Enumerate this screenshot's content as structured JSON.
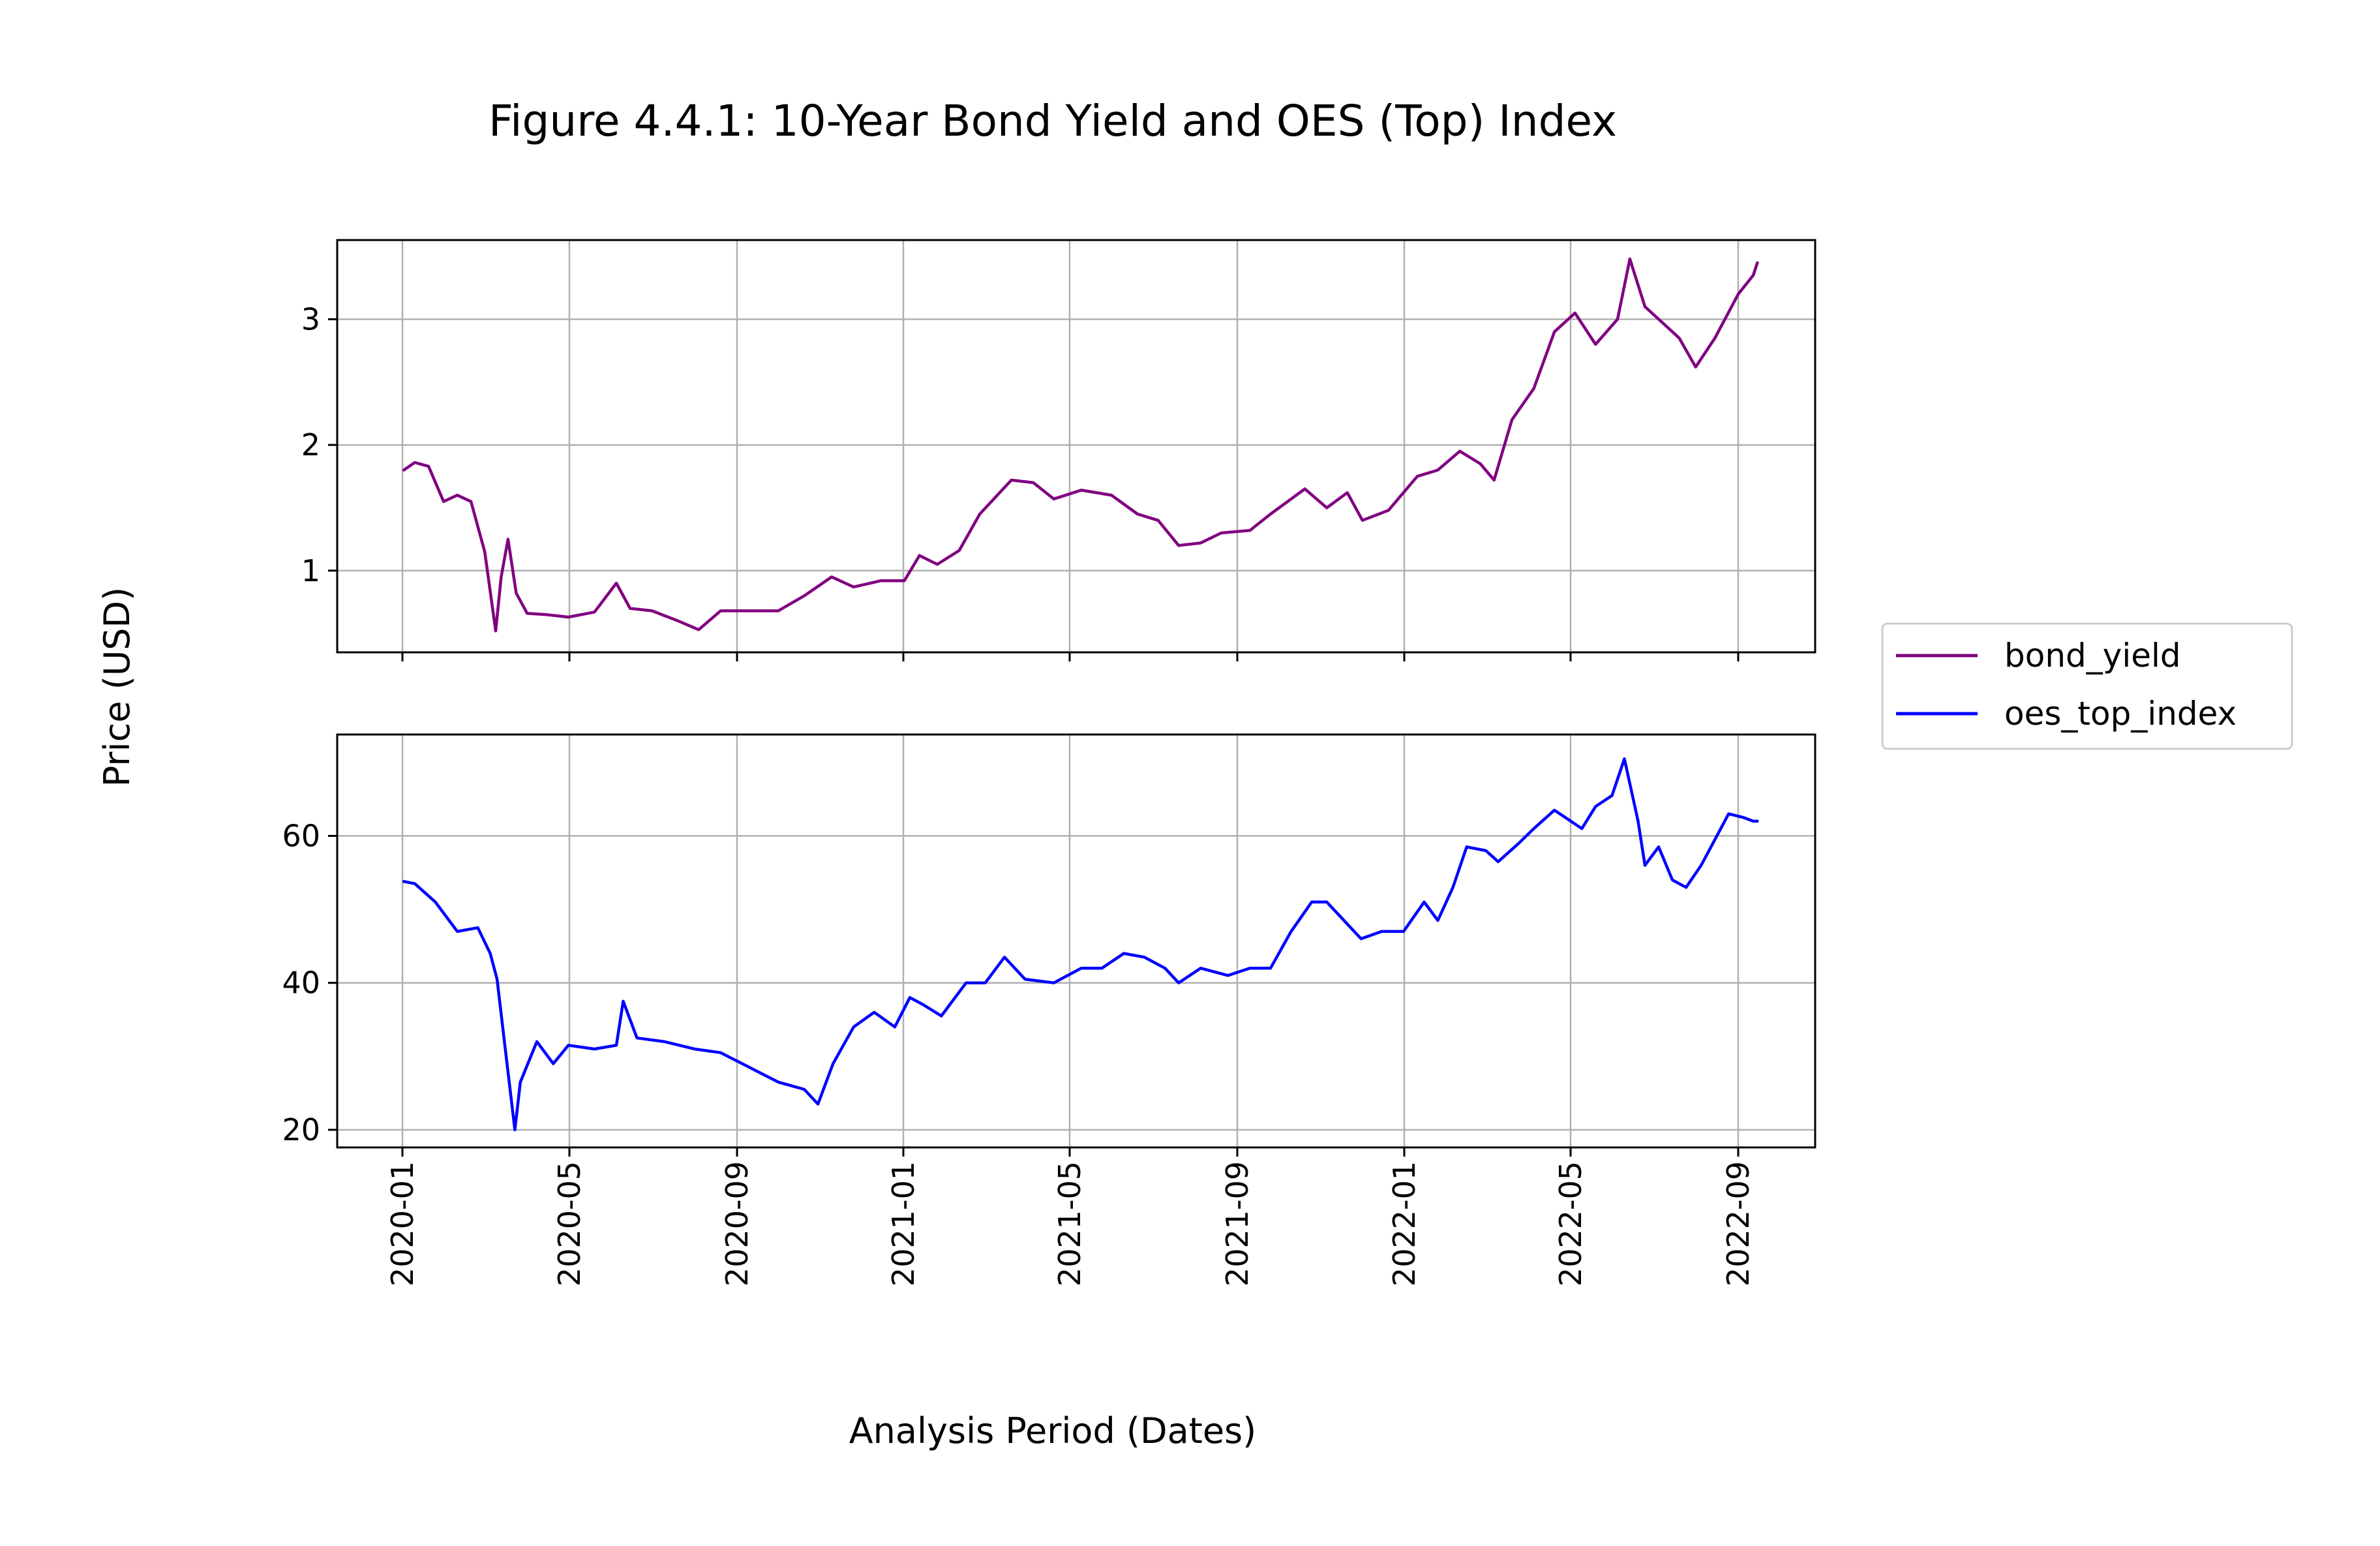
{
  "chart_data": {
    "type": "line",
    "title": "Figure 4.4.1: 10-Year Bond Yield and OES (Top) Index",
    "xlabel": "Analysis Period (Dates)",
    "ylabel": "Price (USD)",
    "x_tick_labels": [
      "2020-01",
      "2020-05",
      "2020-09",
      "2021-01",
      "2021-05",
      "2021-09",
      "2022-01",
      "2022-05",
      "2022-09"
    ],
    "grid": true,
    "legend_position": "right",
    "legend": [
      {
        "name": "bond_yield",
        "color": "#800080"
      },
      {
        "name": "oes_top_index",
        "color": "#0000ff"
      }
    ],
    "panels": [
      {
        "series": "bond_yield",
        "color": "#800080",
        "ylim": [
          0.35,
          3.63
        ],
        "y_ticks": [
          1,
          2,
          3
        ],
        "points": [
          [
            "2020-01-02",
            1.8
          ],
          [
            "2020-01-10",
            1.86
          ],
          [
            "2020-01-20",
            1.83
          ],
          [
            "2020-01-31",
            1.55
          ],
          [
            "2020-02-10",
            1.6
          ],
          [
            "2020-02-20",
            1.55
          ],
          [
            "2020-03-01",
            1.15
          ],
          [
            "2020-03-09",
            0.52
          ],
          [
            "2020-03-13",
            0.95
          ],
          [
            "2020-03-18",
            1.25
          ],
          [
            "2020-03-24",
            0.82
          ],
          [
            "2020-04-01",
            0.66
          ],
          [
            "2020-04-15",
            0.65
          ],
          [
            "2020-05-01",
            0.63
          ],
          [
            "2020-05-20",
            0.67
          ],
          [
            "2020-06-05",
            0.9
          ],
          [
            "2020-06-15",
            0.7
          ],
          [
            "2020-07-01",
            0.68
          ],
          [
            "2020-07-20",
            0.6
          ],
          [
            "2020-08-04",
            0.53
          ],
          [
            "2020-08-20",
            0.68
          ],
          [
            "2020-09-10",
            0.68
          ],
          [
            "2020-10-01",
            0.68
          ],
          [
            "2020-10-20",
            0.8
          ],
          [
            "2020-11-09",
            0.95
          ],
          [
            "2020-11-25",
            0.87
          ],
          [
            "2020-12-15",
            0.92
          ],
          [
            "2021-01-01",
            0.92
          ],
          [
            "2021-01-12",
            1.12
          ],
          [
            "2021-01-25",
            1.05
          ],
          [
            "2021-02-10",
            1.16
          ],
          [
            "2021-02-25",
            1.45
          ],
          [
            "2021-03-20",
            1.72
          ],
          [
            "2021-04-05",
            1.7
          ],
          [
            "2021-04-20",
            1.57
          ],
          [
            "2021-05-10",
            1.64
          ],
          [
            "2021-06-01",
            1.6
          ],
          [
            "2021-06-20",
            1.45
          ],
          [
            "2021-07-05",
            1.4
          ],
          [
            "2021-07-20",
            1.2
          ],
          [
            "2021-08-05",
            1.22
          ],
          [
            "2021-08-20",
            1.3
          ],
          [
            "2021-09-10",
            1.32
          ],
          [
            "2021-09-25",
            1.45
          ],
          [
            "2021-10-20",
            1.65
          ],
          [
            "2021-11-05",
            1.5
          ],
          [
            "2021-11-20",
            1.62
          ],
          [
            "2021-12-01",
            1.4
          ],
          [
            "2021-12-20",
            1.48
          ],
          [
            "2022-01-10",
            1.75
          ],
          [
            "2022-01-25",
            1.8
          ],
          [
            "2022-02-10",
            1.95
          ],
          [
            "2022-02-25",
            1.85
          ],
          [
            "2022-03-07",
            1.72
          ],
          [
            "2022-03-20",
            2.2
          ],
          [
            "2022-04-05",
            2.45
          ],
          [
            "2022-04-20",
            2.9
          ],
          [
            "2022-05-05",
            3.05
          ],
          [
            "2022-05-20",
            2.8
          ],
          [
            "2022-06-05",
            3.0
          ],
          [
            "2022-06-14",
            3.48
          ],
          [
            "2022-06-25",
            3.1
          ],
          [
            "2022-07-10",
            2.95
          ],
          [
            "2022-07-20",
            2.85
          ],
          [
            "2022-08-01",
            2.62
          ],
          [
            "2022-08-15",
            2.85
          ],
          [
            "2022-09-01",
            3.2
          ],
          [
            "2022-09-12",
            3.35
          ],
          [
            "2022-09-15",
            3.45
          ]
        ]
      },
      {
        "series": "oes_top_index",
        "color": "#0000ff",
        "ylim": [
          17.6,
          73.8
        ],
        "y_ticks": [
          20,
          40,
          60
        ],
        "points": [
          [
            "2020-01-02",
            53.8
          ],
          [
            "2020-01-10",
            53.5
          ],
          [
            "2020-01-25",
            51.0
          ],
          [
            "2020-02-10",
            47.0
          ],
          [
            "2020-02-25",
            47.5
          ],
          [
            "2020-03-05",
            44.0
          ],
          [
            "2020-03-10",
            40.5
          ],
          [
            "2020-03-16",
            31.0
          ],
          [
            "2020-03-23",
            20.0
          ],
          [
            "2020-03-27",
            26.5
          ],
          [
            "2020-04-08",
            32.0
          ],
          [
            "2020-04-20",
            29.0
          ],
          [
            "2020-05-01",
            31.5
          ],
          [
            "2020-05-20",
            31.0
          ],
          [
            "2020-06-05",
            31.5
          ],
          [
            "2020-06-10",
            37.5
          ],
          [
            "2020-06-20",
            32.5
          ],
          [
            "2020-07-10",
            32.0
          ],
          [
            "2020-08-01",
            31.0
          ],
          [
            "2020-08-20",
            30.5
          ],
          [
            "2020-09-10",
            28.5
          ],
          [
            "2020-10-01",
            26.5
          ],
          [
            "2020-10-20",
            25.5
          ],
          [
            "2020-10-30",
            23.5
          ],
          [
            "2020-11-10",
            29.0
          ],
          [
            "2020-11-25",
            34.0
          ],
          [
            "2020-12-10",
            36.0
          ],
          [
            "2020-12-25",
            34.0
          ],
          [
            "2021-01-05",
            38.0
          ],
          [
            "2021-01-15",
            37.0
          ],
          [
            "2021-01-28",
            35.5
          ],
          [
            "2021-02-15",
            40.0
          ],
          [
            "2021-03-01",
            40.0
          ],
          [
            "2021-03-15",
            43.5
          ],
          [
            "2021-03-30",
            40.5
          ],
          [
            "2021-04-20",
            40.0
          ],
          [
            "2021-05-10",
            42.0
          ],
          [
            "2021-05-25",
            42.0
          ],
          [
            "2021-06-10",
            44.0
          ],
          [
            "2021-06-25",
            43.5
          ],
          [
            "2021-07-10",
            42.0
          ],
          [
            "2021-07-20",
            40.0
          ],
          [
            "2021-08-05",
            42.0
          ],
          [
            "2021-08-25",
            41.0
          ],
          [
            "2021-09-10",
            42.0
          ],
          [
            "2021-09-25",
            42.0
          ],
          [
            "2021-10-10",
            47.0
          ],
          [
            "2021-10-25",
            51.0
          ],
          [
            "2021-11-05",
            51.0
          ],
          [
            "2021-11-15",
            49.0
          ],
          [
            "2021-11-30",
            46.0
          ],
          [
            "2021-12-15",
            47.0
          ],
          [
            "2021-12-31",
            47.0
          ],
          [
            "2022-01-15",
            51.0
          ],
          [
            "2022-01-25",
            48.5
          ],
          [
            "2022-02-05",
            53.0
          ],
          [
            "2022-02-15",
            58.5
          ],
          [
            "2022-03-01",
            58.0
          ],
          [
            "2022-03-10",
            56.5
          ],
          [
            "2022-03-25",
            59.0
          ],
          [
            "2022-04-05",
            61.0
          ],
          [
            "2022-04-20",
            63.5
          ],
          [
            "2022-05-10",
            61.0
          ],
          [
            "2022-05-20",
            64.0
          ],
          [
            "2022-06-01",
            65.5
          ],
          [
            "2022-06-10",
            70.5
          ],
          [
            "2022-06-20",
            62.0
          ],
          [
            "2022-06-25",
            56.0
          ],
          [
            "2022-07-05",
            58.5
          ],
          [
            "2022-07-15",
            54.0
          ],
          [
            "2022-07-25",
            53.0
          ],
          [
            "2022-08-05",
            56.0
          ],
          [
            "2022-08-15",
            59.5
          ],
          [
            "2022-08-25",
            63.0
          ],
          [
            "2022-09-05",
            62.5
          ],
          [
            "2022-09-12",
            62.0
          ],
          [
            "2022-09-15",
            62.0
          ]
        ]
      }
    ]
  }
}
